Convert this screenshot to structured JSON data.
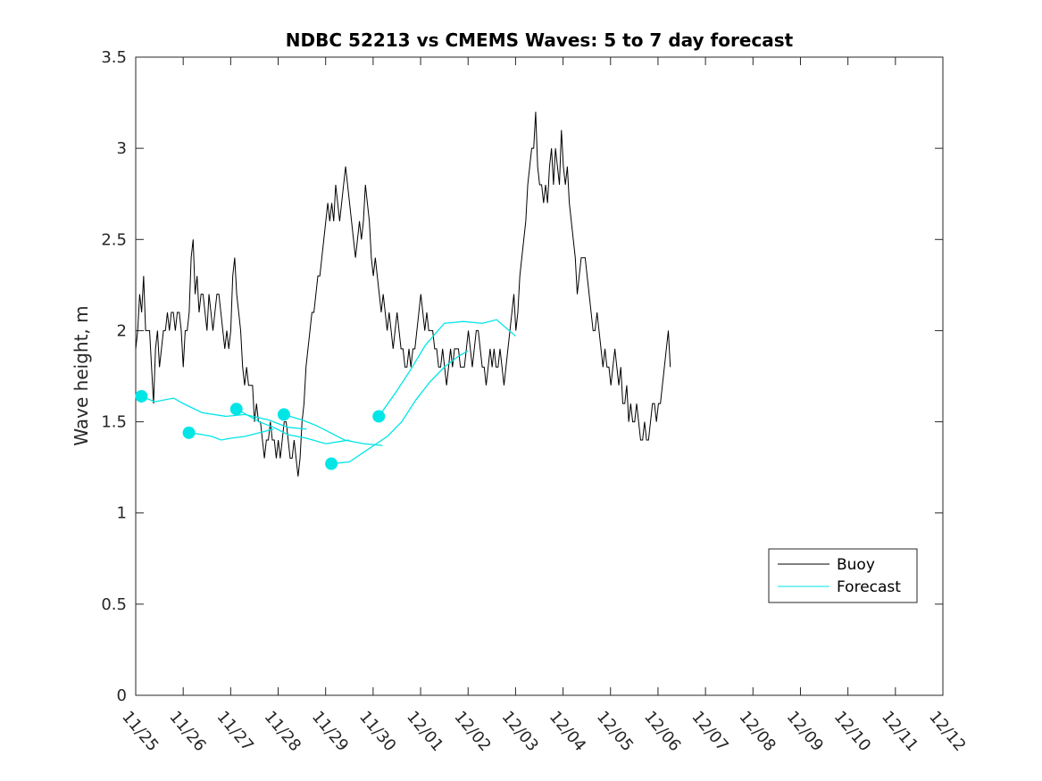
{
  "chart_data": {
    "type": "line",
    "title": "NDBC 52213 vs CMEMS Waves: 5 to 7 day forecast",
    "xlabel": "",
    "ylabel": "Wave height, m",
    "ylim": [
      0,
      3.5
    ],
    "xlim": [
      0,
      17
    ],
    "x_tick_labels": [
      "11/25",
      "11/26",
      "11/27",
      "11/28",
      "11/29",
      "11/30",
      "12/01",
      "12/02",
      "12/03",
      "12/04",
      "12/05",
      "12/06",
      "12/07",
      "12/08",
      "12/09",
      "12/10",
      "12/11",
      "12/12"
    ],
    "y_ticks": [
      0,
      0.5,
      1,
      1.5,
      2,
      2.5,
      3,
      3.5
    ],
    "y_tick_labels": [
      "0",
      "0.5",
      "1",
      "1.5",
      "2",
      "2.5",
      "3",
      "3.5"
    ],
    "legend": {
      "position": "bottom-right",
      "entries": [
        "Buoy",
        "Forecast"
      ]
    },
    "colors": {
      "buoy": "#000000",
      "forecast": "#00e5e5",
      "axes": "#262626"
    },
    "series": [
      {
        "name": "Buoy",
        "x_step_days": 0.0417,
        "x_start": 0,
        "values": [
          1.9,
          2.0,
          2.2,
          2.1,
          2.3,
          2.0,
          2.0,
          2.0,
          1.8,
          1.6,
          1.9,
          2.0,
          1.8,
          1.9,
          2.0,
          2.0,
          2.1,
          2.0,
          2.1,
          2.1,
          2.0,
          2.1,
          2.1,
          2.0,
          1.8,
          2.0,
          2.0,
          2.1,
          2.4,
          2.5,
          2.2,
          2.3,
          2.1,
          2.2,
          2.2,
          2.1,
          2.0,
          2.2,
          2.1,
          2.0,
          2.1,
          2.2,
          2.2,
          2.1,
          2.0,
          1.9,
          2.0,
          1.9,
          2.0,
          2.3,
          2.4,
          2.2,
          2.1,
          2.0,
          1.8,
          1.7,
          1.8,
          1.7,
          1.7,
          1.7,
          1.5,
          1.6,
          1.5,
          1.5,
          1.4,
          1.3,
          1.4,
          1.4,
          1.5,
          1.4,
          1.4,
          1.3,
          1.4,
          1.3,
          1.4,
          1.5,
          1.5,
          1.4,
          1.3,
          1.3,
          1.4,
          1.3,
          1.2,
          1.3,
          1.5,
          1.6,
          1.8,
          1.9,
          2.0,
          2.1,
          2.1,
          2.2,
          2.3,
          2.3,
          2.4,
          2.5,
          2.6,
          2.7,
          2.6,
          2.7,
          2.6,
          2.8,
          2.7,
          2.6,
          2.7,
          2.8,
          2.9,
          2.8,
          2.7,
          2.6,
          2.5,
          2.4,
          2.5,
          2.6,
          2.5,
          2.6,
          2.8,
          2.7,
          2.6,
          2.4,
          2.3,
          2.4,
          2.3,
          2.2,
          2.1,
          2.2,
          2.1,
          2.0,
          2.1,
          2.0,
          1.9,
          2.0,
          2.1,
          2.0,
          1.9,
          1.9,
          1.8,
          1.8,
          1.9,
          1.8,
          1.9,
          1.9,
          2.0,
          2.1,
          2.2,
          2.1,
          2.0,
          2.1,
          2.0,
          2.0,
          2.0,
          1.9,
          1.9,
          1.8,
          1.8,
          1.9,
          1.8,
          1.7,
          1.8,
          1.9,
          1.8,
          1.9,
          1.9,
          1.9,
          1.8,
          1.8,
          1.8,
          1.9,
          2.0,
          1.9,
          1.8,
          1.9,
          2.0,
          2.0,
          1.9,
          1.8,
          1.8,
          1.7,
          1.8,
          1.9,
          1.8,
          1.9,
          1.8,
          1.8,
          1.9,
          1.8,
          1.7,
          1.8,
          1.9,
          2.0,
          2.1,
          2.2,
          2.0,
          2.1,
          2.3,
          2.4,
          2.5,
          2.6,
          2.8,
          2.9,
          3.0,
          3.0,
          3.2,
          2.9,
          2.8,
          2.8,
          2.7,
          2.8,
          2.7,
          2.9,
          3.0,
          2.8,
          3.0,
          2.9,
          2.8,
          3.1,
          2.9,
          2.8,
          2.9,
          2.7,
          2.6,
          2.5,
          2.4,
          2.2,
          2.3,
          2.4,
          2.4,
          2.4,
          2.3,
          2.2,
          2.1,
          2.0,
          2.0,
          2.1,
          2.0,
          1.9,
          1.8,
          1.9,
          1.8,
          1.8,
          1.7,
          1.8,
          1.9,
          1.8,
          1.7,
          1.8,
          1.6,
          1.6,
          1.7,
          1.5,
          1.6,
          1.5,
          1.5,
          1.6,
          1.5,
          1.4,
          1.4,
          1.5,
          1.4,
          1.4,
          1.5,
          1.6,
          1.6,
          1.5,
          1.6,
          1.6,
          1.7,
          1.8,
          1.9,
          2.0,
          1.8
        ]
      },
      {
        "name": "Forecast",
        "segments": [
          {
            "x": [
              0.12,
              0.4,
              0.8,
              1.0,
              1.4,
              1.9,
              2.3,
              2.8,
              3.2,
              3.6
            ],
            "values": [
              1.64,
              1.61,
              1.63,
              1.6,
              1.55,
              1.53,
              1.54,
              1.51,
              1.47,
              1.46
            ]
          },
          {
            "x": [
              1.12,
              1.4,
              1.6,
              1.8,
              2.0,
              2.3,
              2.6,
              2.9
            ],
            "values": [
              1.44,
              1.43,
              1.42,
              1.4,
              1.41,
              1.42,
              1.44,
              1.46
            ]
          },
          {
            "x": [
              2.12,
              2.4,
              2.6,
              2.9,
              3.2,
              3.6,
              4.0,
              4.5
            ],
            "values": [
              1.57,
              1.53,
              1.5,
              1.47,
              1.43,
              1.41,
              1.38,
              1.4
            ]
          },
          {
            "x": [
              3.12,
              3.5,
              3.8,
              4.1,
              4.4,
              4.8,
              5.2
            ],
            "values": [
              1.54,
              1.51,
              1.48,
              1.44,
              1.4,
              1.38,
              1.37
            ]
          },
          {
            "x": [
              4.12,
              4.5,
              4.9,
              5.3,
              5.6,
              5.9,
              6.2,
              6.5,
              6.8,
              7.0
            ],
            "values": [
              1.27,
              1.28,
              1.35,
              1.42,
              1.5,
              1.62,
              1.72,
              1.8,
              1.86,
              1.89
            ]
          },
          {
            "x": [
              5.12,
              5.5,
              5.8,
              6.1,
              6.5,
              6.9,
              7.3,
              7.6,
              8.0
            ],
            "values": [
              1.53,
              1.67,
              1.79,
              1.92,
              2.04,
              2.05,
              2.04,
              2.06,
              1.97
            ]
          }
        ],
        "markers": [
          {
            "x": 0.12,
            "y": 1.64
          },
          {
            "x": 1.12,
            "y": 1.44
          },
          {
            "x": 2.12,
            "y": 1.57
          },
          {
            "x": 3.12,
            "y": 1.54
          },
          {
            "x": 4.12,
            "y": 1.27
          },
          {
            "x": 5.12,
            "y": 1.53
          }
        ]
      }
    ]
  }
}
